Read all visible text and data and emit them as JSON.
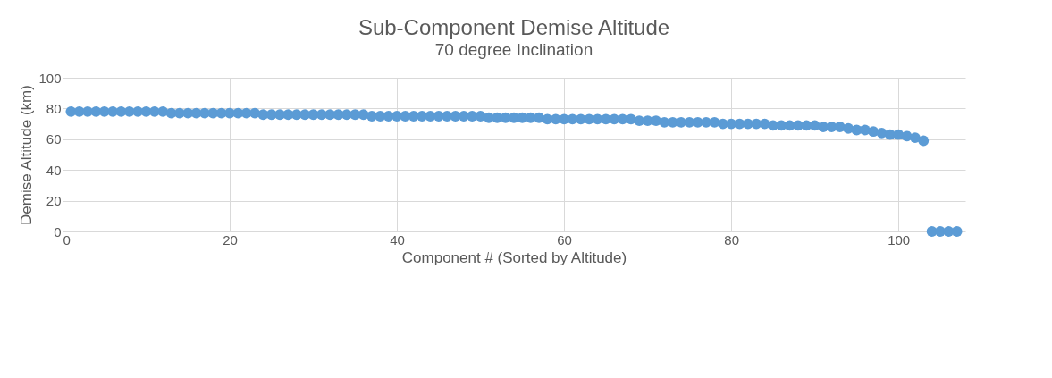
{
  "chart_data": {
    "type": "scatter",
    "title": "Sub-Component  Demise Altitude",
    "subtitle": "70 degree Inclination",
    "xlabel": "Component # (Sorted by Altitude)",
    "ylabel": "Demise Altitude (km)",
    "x": [
      1,
      2,
      3,
      4,
      5,
      6,
      7,
      8,
      9,
      10,
      11,
      12,
      13,
      14,
      15,
      16,
      17,
      18,
      19,
      20,
      21,
      22,
      23,
      24,
      25,
      26,
      27,
      28,
      29,
      30,
      31,
      32,
      33,
      34,
      35,
      36,
      37,
      38,
      39,
      40,
      41,
      42,
      43,
      44,
      45,
      46,
      47,
      48,
      49,
      50,
      51,
      52,
      53,
      54,
      55,
      56,
      57,
      58,
      59,
      60,
      61,
      62,
      63,
      64,
      65,
      66,
      67,
      68,
      69,
      70,
      71,
      72,
      73,
      74,
      75,
      76,
      77,
      78,
      79,
      80,
      81,
      82,
      83,
      84,
      85,
      86,
      87,
      88,
      89,
      90,
      91,
      92,
      93,
      94,
      95,
      96,
      97,
      98,
      99,
      100,
      101,
      102,
      103,
      104,
      105,
      106,
      107
    ],
    "series": [
      {
        "color": "#5b9bd5",
        "values": [
          78,
          78,
          78,
          78,
          78,
          78,
          78,
          78,
          78,
          78,
          78,
          78,
          77,
          77,
          77,
          77,
          77,
          77,
          77,
          77,
          77,
          77,
          77,
          76,
          76,
          76,
          76,
          76,
          76,
          76,
          76,
          76,
          76,
          76,
          76,
          76,
          75,
          75,
          75,
          75,
          75,
          75,
          75,
          75,
          75,
          75,
          75,
          75,
          75,
          75,
          74,
          74,
          74,
          74,
          74,
          74,
          74,
          73,
          73,
          73,
          73,
          73,
          73,
          73,
          73,
          73,
          73,
          73,
          72,
          72,
          72,
          71,
          71,
          71,
          71,
          71,
          71,
          71,
          70,
          70,
          70,
          70,
          70,
          70,
          69,
          69,
          69,
          69,
          69,
          69,
          68,
          68,
          68,
          67,
          66,
          66,
          65,
          64,
          63,
          63,
          62,
          61,
          59,
          0,
          0,
          0,
          0
        ]
      }
    ],
    "xlim": [
      0,
      108
    ],
    "xticks": [
      0,
      20,
      40,
      60,
      80,
      100
    ],
    "ylim": [
      0,
      100
    ],
    "yticks": [
      0,
      20,
      40,
      60,
      80,
      100
    ],
    "grid": true,
    "marker": "circle",
    "legend": false
  }
}
